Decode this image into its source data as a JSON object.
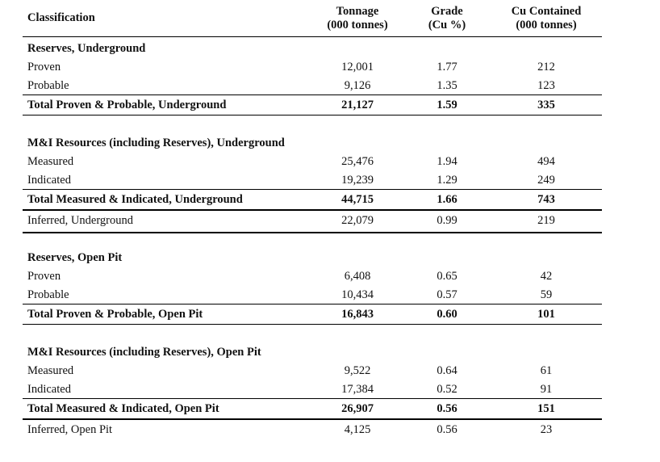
{
  "header": {
    "classification": "Classification",
    "tonnage_line1": "Tonnage",
    "tonnage_line2": "(000 tonnes)",
    "grade_line1": "Grade",
    "grade_line2": "(Cu %)",
    "cu_line1": "Cu Contained",
    "cu_line2": "(000 tonnes)"
  },
  "ug_reserves": {
    "title": "Reserves, Underground",
    "rows": [
      {
        "label": "Proven",
        "tonnage": "12,001",
        "grade": "1.77",
        "cu": "212"
      },
      {
        "label": "Probable",
        "tonnage": "9,126",
        "grade": "1.35",
        "cu": "123"
      }
    ],
    "total": {
      "label": "Total Proven & Probable, Underground",
      "tonnage": "21,127",
      "grade": "1.59",
      "cu": "335"
    }
  },
  "ug_resources": {
    "title": "M&I Resources (including Reserves), Underground",
    "rows": [
      {
        "label": "Measured",
        "tonnage": "25,476",
        "grade": "1.94",
        "cu": "494"
      },
      {
        "label": "Indicated",
        "tonnage": "19,239",
        "grade": "1.29",
        "cu": "249"
      }
    ],
    "total": {
      "label": "Total Measured & Indicated, Underground",
      "tonnage": "44,715",
      "grade": "1.66",
      "cu": "743"
    },
    "inferred": {
      "label": "Inferred, Underground",
      "tonnage": "22,079",
      "grade": "0.99",
      "cu": "219"
    }
  },
  "op_reserves": {
    "title": "Reserves, Open Pit",
    "rows": [
      {
        "label": "Proven",
        "tonnage": "6,408",
        "grade": "0.65",
        "cu": "42"
      },
      {
        "label": "Probable",
        "tonnage": "10,434",
        "grade": "0.57",
        "cu": "59"
      }
    ],
    "total": {
      "label": "Total Proven & Probable, Open Pit",
      "tonnage": "16,843",
      "grade": "0.60",
      "cu": "101"
    }
  },
  "op_resources": {
    "title": "M&I Resources (including Reserves), Open Pit",
    "rows": [
      {
        "label": "Measured",
        "tonnage": "9,522",
        "grade": "0.64",
        "cu": "61"
      },
      {
        "label": "Indicated",
        "tonnage": "17,384",
        "grade": "0.52",
        "cu": "91"
      }
    ],
    "total": {
      "label": "Total Measured & Indicated, Open Pit",
      "tonnage": "26,907",
      "grade": "0.56",
      "cu": "151"
    },
    "inferred": {
      "label": "Inferred, Open Pit",
      "tonnage": "4,125",
      "grade": "0.56",
      "cu": "23"
    }
  }
}
